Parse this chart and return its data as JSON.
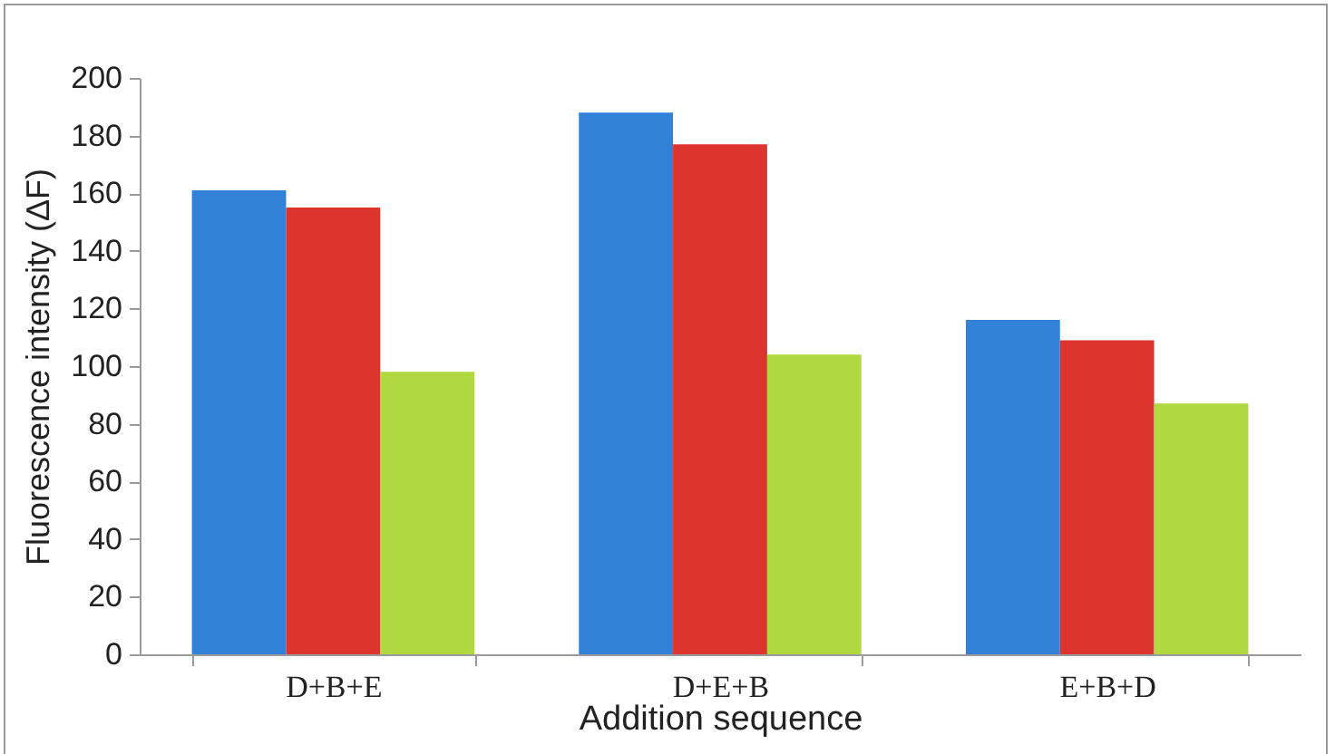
{
  "chart_data": {
    "type": "bar",
    "xlabel": "Addition sequence",
    "ylabel": "Fluorescence intensity (ΔF)",
    "categories": [
      "D+B+E",
      "D+E+B",
      "E+B+D"
    ],
    "series": [
      {
        "color": "#3181d8",
        "values": [
          161,
          188,
          116
        ]
      },
      {
        "color": "#de3430",
        "values": [
          155,
          177,
          109
        ]
      },
      {
        "color": "#b0d841",
        "values": [
          98,
          104,
          87
        ]
      }
    ],
    "ylim": [
      0,
      200
    ],
    "yticks": [
      0,
      20,
      40,
      60,
      80,
      100,
      120,
      140,
      160,
      180,
      200
    ],
    "grid": false,
    "legend": false
  }
}
